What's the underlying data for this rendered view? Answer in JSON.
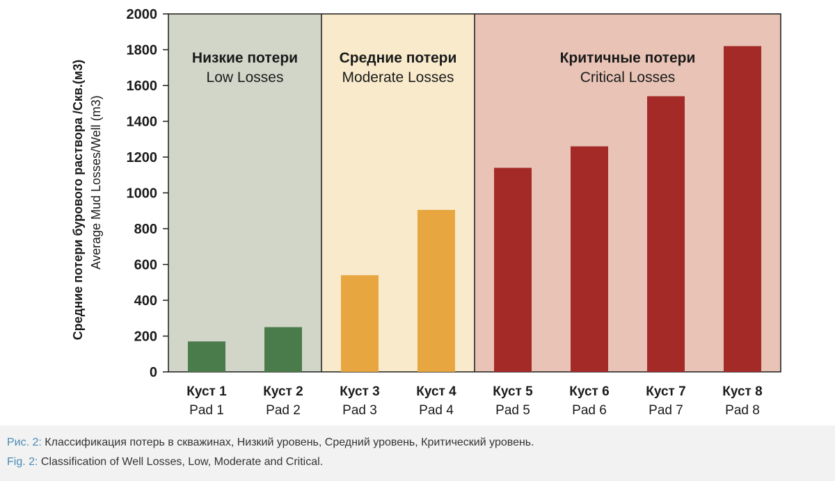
{
  "chart_data": {
    "type": "bar",
    "ylabel": [
      "Средние потери бурового раствора /Скв.(м3)",
      "Average Mud Losses/Well (m3)"
    ],
    "ylim": [
      0,
      2000
    ],
    "yticks": [
      0,
      200,
      400,
      600,
      800,
      1000,
      1200,
      1400,
      1600,
      1800,
      2000
    ],
    "grid": false,
    "categories": [
      {
        "ru": "Куст 1",
        "en": "Pad 1"
      },
      {
        "ru": "Куст 2",
        "en": "Pad 2"
      },
      {
        "ru": "Куст 3",
        "en": "Pad 3"
      },
      {
        "ru": "Куст 4",
        "en": "Pad 4"
      },
      {
        "ru": "Куст 5",
        "en": "Pad 5"
      },
      {
        "ru": "Куст 6",
        "en": "Pad 6"
      },
      {
        "ru": "Куст 7",
        "en": "Pad 7"
      },
      {
        "ru": "Куст 8",
        "en": "Pad 8"
      }
    ],
    "values": [
      170,
      250,
      540,
      905,
      1140,
      1260,
      1540,
      1820
    ],
    "zones": [
      {
        "ru": "Низкие потери",
        "en": "Low Losses",
        "start": 0,
        "end": 2,
        "bg": "#d1d6c9",
        "bar": "#4a7b4b"
      },
      {
        "ru": "Средние потери",
        "en": "Moderate Losses",
        "start": 2,
        "end": 4,
        "bg": "#f8eacb",
        "bar": "#e8a640"
      },
      {
        "ru": "Критичные потери",
        "en": "Critical Losses",
        "start": 4,
        "end": 8,
        "bg": "#e8c3b6",
        "bar": "#a42a28"
      }
    ]
  },
  "caption": {
    "ru_prefix": "Рис. 2:",
    "ru_text": " Классификация потерь в скважинах, Низкий уровень, Средний уровень, Критический уровень.",
    "en_prefix": "Fig. 2:",
    "en_text": " Classification of Well Losses, Low, Moderate and Critical."
  }
}
